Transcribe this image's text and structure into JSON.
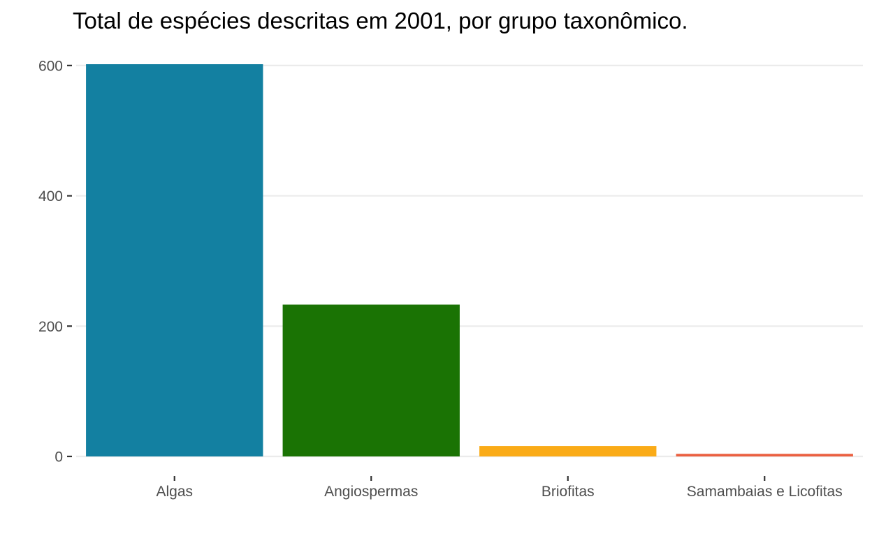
{
  "chart_data": {
    "type": "bar",
    "title": "Total de espécies descritas em 2001, por grupo taxonômico.",
    "xlabel": "",
    "ylabel": "",
    "categories": [
      "Algas",
      "Angiospermas",
      "Briofitas",
      "Samambaias e Licofitas"
    ],
    "values": [
      602,
      233,
      16,
      4
    ],
    "colors": [
      "#1380a1",
      "#1a7304",
      "#faab18",
      "#eb6041"
    ],
    "ylim": [
      0,
      602
    ],
    "yticks": [
      0,
      200,
      400,
      600
    ],
    "ytick_labels": [
      "0",
      "200",
      "400",
      "600"
    ],
    "grid": "horizontal major",
    "legend": "none"
  }
}
